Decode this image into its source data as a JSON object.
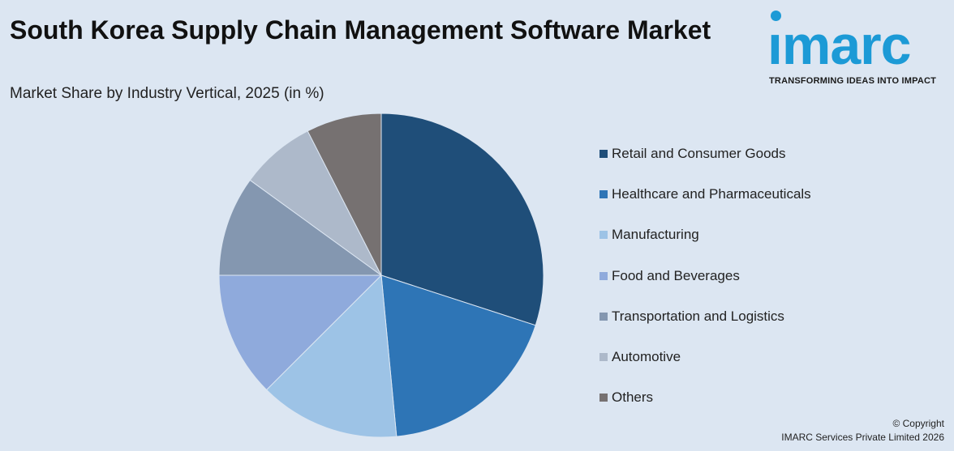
{
  "header": {
    "title": "South Korea Supply Chain Management Software Market",
    "subtitle": "Market Share by Industry Vertical, 2025 (in %)"
  },
  "logo": {
    "wordmark": "imarc",
    "tagline": "TRANSFORMING IDEAS INTO IMPACT",
    "color": "#1c9ad6"
  },
  "chart_data": {
    "type": "pie",
    "categories": [
      "Retail and Consumer Goods",
      "Healthcare and Pharmaceuticals",
      "Manufacturing",
      "Food and Beverages",
      "Transportation and Logistics",
      "Automotive",
      "Others"
    ],
    "values": [
      30,
      18.5,
      14,
      12.5,
      10,
      7.5,
      7.5
    ],
    "colors": [
      "#1f4e79",
      "#2e75b6",
      "#9dc3e6",
      "#8faadc",
      "#8497b0",
      "#adb9ca",
      "#767171"
    ],
    "legend_position": "right"
  },
  "footer": {
    "copyright_line1": "© Copyright",
    "copyright_line2": "IMARC Services Private Limited 2026"
  }
}
